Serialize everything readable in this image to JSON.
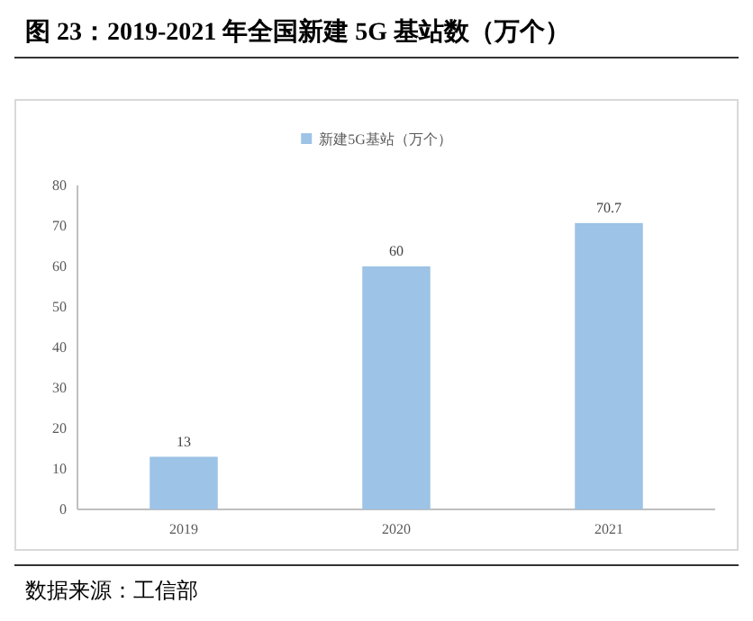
{
  "chart_data": {
    "type": "bar",
    "title": "图  23：2019-2021 年全国新建 5G 基站数（万个）",
    "categories": [
      "2019",
      "2020",
      "2021"
    ],
    "series": [
      {
        "name": "新建5G基站（万个）",
        "color": "#9dc3e6",
        "values": [
          13,
          60,
          70.7
        ]
      }
    ],
    "ylim": [
      0,
      80
    ],
    "yticks": [
      0,
      10,
      20,
      30,
      40,
      50,
      60,
      70,
      80
    ],
    "data_labels": true,
    "legend": "top",
    "grid": false,
    "annotations": [
      "数据来源：工信部"
    ]
  }
}
